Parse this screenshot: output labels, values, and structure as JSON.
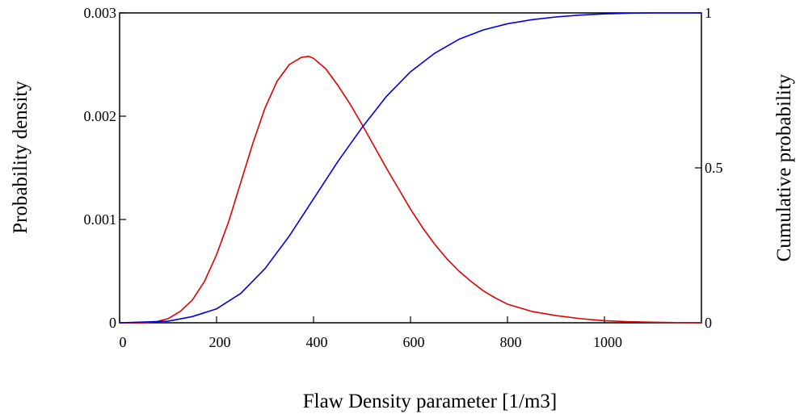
{
  "chart_data": {
    "type": "line",
    "title": "",
    "xlabel": "Flaw Density parameter [1/m3]",
    "ylabel": "Probability density",
    "y2label": "Cumulative probability",
    "xlim": [
      0,
      1200
    ],
    "ylim": [
      0,
      0.003
    ],
    "y2lim": [
      0,
      1
    ],
    "grid": false,
    "x_ticks": [
      0,
      200,
      400,
      600,
      800,
      1000
    ],
    "x_tick_labels": [
      "0",
      "200",
      "400",
      "600",
      "800",
      "1000"
    ],
    "y_ticks": [
      0,
      0.001,
      0.002,
      0.003
    ],
    "y_tick_labels": [
      "0",
      "0.001",
      "0.002",
      "0.003"
    ],
    "y2_ticks": [
      0,
      0.5,
      1
    ],
    "y2_tick_labels": [
      "0",
      "0.5",
      "1"
    ],
    "series": [
      {
        "axis": "left",
        "color": "#e00000",
        "x": [
          0,
          50,
          75,
          100,
          125,
          150,
          175,
          200,
          225,
          250,
          275,
          300,
          325,
          350,
          375,
          390,
          400,
          425,
          450,
          475,
          500,
          525,
          550,
          575,
          600,
          625,
          650,
          675,
          700,
          725,
          750,
          775,
          800,
          850,
          900,
          950,
          1000,
          1050,
          1100,
          1150,
          1200
        ],
        "y": [
          0,
          0,
          1e-05,
          4e-05,
          0.00011,
          0.00022,
          0.0004,
          0.00066,
          0.00098,
          0.00136,
          0.00174,
          0.00208,
          0.00234,
          0.0025,
          0.00257,
          0.00258,
          0.00256,
          0.00246,
          0.0023,
          0.00212,
          0.00192,
          0.00171,
          0.0015,
          0.0013,
          0.0011,
          0.00092,
          0.00076,
          0.00062,
          0.0005,
          0.0004,
          0.00031,
          0.00024,
          0.00018,
          0.00011,
          7e-05,
          4e-05,
          2e-05,
          1e-05,
          5e-06,
          2e-06,
          1e-06
        ]
      },
      {
        "axis": "right",
        "color": "#0000e0",
        "x": [
          0,
          100,
          150,
          200,
          250,
          300,
          350,
          400,
          450,
          500,
          550,
          600,
          650,
          700,
          750,
          800,
          850,
          900,
          950,
          1000,
          1050,
          1100,
          1200
        ],
        "y": [
          0,
          0.005,
          0.02,
          0.045,
          0.095,
          0.175,
          0.28,
          0.4,
          0.52,
          0.63,
          0.73,
          0.81,
          0.87,
          0.915,
          0.945,
          0.965,
          0.978,
          0.987,
          0.993,
          0.997,
          0.999,
          1,
          1
        ]
      }
    ]
  }
}
